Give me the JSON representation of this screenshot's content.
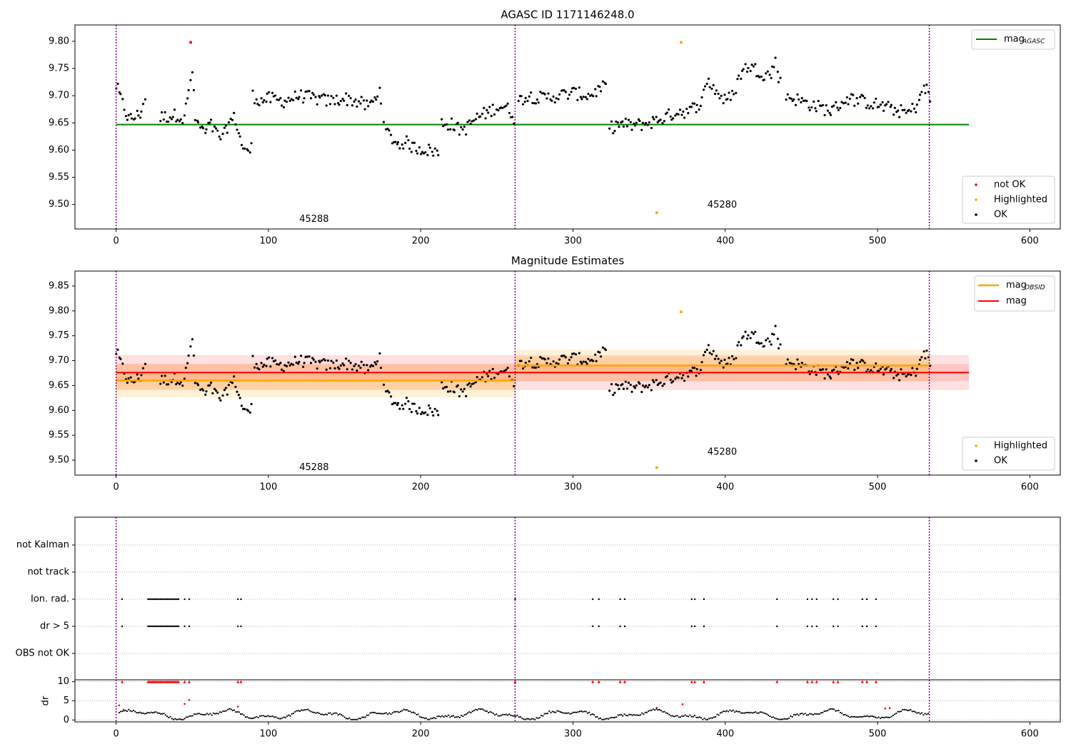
{
  "colors": {
    "ok": "#000000",
    "not_ok": "#ff0000",
    "highlighted": "#ffa500",
    "agasc_line": "#008000",
    "obsid_line": "#ffa500",
    "mag_line": "#ff0000",
    "vline": "#800080",
    "grid": "#b0b0b0"
  },
  "chart_data": [
    {
      "id": "agasc",
      "type": "scatter",
      "title": "AGASC ID 1171146248.0",
      "xlim": [
        -27,
        620
      ],
      "ylim": [
        9.455,
        9.83
      ],
      "xticks": [
        0,
        100,
        200,
        300,
        400,
        500,
        600
      ],
      "yticks": [
        9.5,
        9.55,
        9.6,
        9.65,
        9.7,
        9.75,
        9.8
      ],
      "obsid_boundaries": [
        0,
        262,
        534
      ],
      "obsid_labels": [
        {
          "text": "45288",
          "x": 130,
          "y": 9.473
        },
        {
          "text": "45280",
          "x": 398,
          "y": 9.499
        }
      ],
      "agasc_mag": 9.647,
      "agasc_mag_x_range": [
        0,
        560
      ],
      "legend_lines": [
        {
          "name": "mag",
          "sub": "AGASC"
        }
      ],
      "legend_points": [
        "not OK",
        "Highlighted",
        "OK"
      ],
      "not_ok_points": [
        [
          49,
          9.798
        ]
      ],
      "highlighted_points": [
        [
          371,
          9.798
        ],
        [
          355,
          9.485
        ]
      ],
      "ok_segments": [
        [
          [
            0,
            9.718
          ],
          [
            8,
            9.657
          ],
          [
            12,
            9.66
          ],
          [
            16,
            9.668
          ],
          [
            19,
            9.695
          ]
        ],
        [
          [
            29,
            9.66
          ],
          [
            42,
            9.665
          ],
          [
            44,
            9.655
          ],
          [
            47,
            9.692
          ],
          [
            50,
            9.748
          ],
          [
            52,
            9.655
          ],
          [
            55,
            9.645
          ],
          [
            58,
            9.63
          ],
          [
            62,
            9.648
          ],
          [
            66,
            9.63
          ],
          [
            70,
            9.622
          ],
          [
            74,
            9.65
          ],
          [
            78,
            9.66
          ],
          [
            82,
            9.615
          ],
          [
            85,
            9.6
          ],
          [
            87,
            9.59
          ],
          [
            89,
            9.615
          ]
        ],
        [
          [
            90,
            9.7
          ],
          [
            95,
            9.69
          ],
          [
            100,
            9.695
          ],
          [
            110,
            9.69
          ],
          [
            120,
            9.7
          ],
          [
            130,
            9.695
          ],
          [
            140,
            9.69
          ],
          [
            150,
            9.695
          ],
          [
            160,
            9.688
          ],
          [
            165,
            9.68
          ],
          [
            170,
            9.692
          ],
          [
            173,
            9.715
          ],
          [
            175,
            9.68
          ]
        ],
        [
          [
            176,
            9.64
          ],
          [
            180,
            9.625
          ],
          [
            185,
            9.61
          ],
          [
            190,
            9.615
          ],
          [
            195,
            9.605
          ],
          [
            200,
            9.603
          ],
          [
            205,
            9.6
          ],
          [
            210,
            9.598
          ],
          [
            212,
            9.59
          ]
        ],
        [
          [
            214,
            9.65
          ],
          [
            220,
            9.648
          ],
          [
            225,
            9.638
          ],
          [
            230,
            9.64
          ],
          [
            235,
            9.655
          ],
          [
            240,
            9.665
          ],
          [
            245,
            9.67
          ],
          [
            250,
            9.68
          ],
          [
            255,
            9.68
          ],
          [
            260,
            9.668
          ],
          [
            262,
            9.655
          ]
        ],
        [
          [
            264,
            9.69
          ],
          [
            270,
            9.7
          ],
          [
            280,
            9.695
          ],
          [
            290,
            9.7
          ],
          [
            300,
            9.705
          ],
          [
            310,
            9.7
          ],
          [
            320,
            9.715
          ],
          [
            322,
            9.718
          ]
        ],
        [
          [
            324,
            9.64
          ],
          [
            330,
            9.648
          ],
          [
            340,
            9.645
          ],
          [
            350,
            9.65
          ],
          [
            360,
            9.66
          ],
          [
            370,
            9.672
          ],
          [
            376,
            9.67
          ],
          [
            380,
            9.68
          ],
          [
            385,
            9.69
          ],
          [
            388,
            9.73
          ],
          [
            395,
            9.705
          ],
          [
            400,
            9.69
          ],
          [
            405,
            9.7
          ],
          [
            410,
            9.74
          ],
          [
            415,
            9.755
          ],
          [
            420,
            9.748
          ],
          [
            425,
            9.74
          ],
          [
            430,
            9.738
          ],
          [
            433,
            9.765
          ],
          [
            437,
            9.715
          ]
        ],
        [
          [
            440,
            9.7
          ],
          [
            450,
            9.69
          ],
          [
            460,
            9.68
          ],
          [
            470,
            9.672
          ],
          [
            480,
            9.695
          ],
          [
            490,
            9.69
          ],
          [
            500,
            9.683
          ],
          [
            510,
            9.675
          ],
          [
            520,
            9.668
          ],
          [
            525,
            9.68
          ],
          [
            530,
            9.71
          ],
          [
            533,
            9.712
          ],
          [
            535,
            9.685
          ]
        ]
      ],
      "ok_gaps": [
        [
          20,
          29
        ],
        [
          324,
          330
        ]
      ]
    },
    {
      "id": "estimates",
      "type": "scatter",
      "title": "Magnitude Estimates",
      "xlim": [
        -27,
        620
      ],
      "ylim": [
        9.47,
        9.88
      ],
      "xticks": [
        0,
        100,
        200,
        300,
        400,
        500,
        600
      ],
      "yticks": [
        9.5,
        9.55,
        9.6,
        9.65,
        9.7,
        9.75,
        9.8,
        9.85
      ],
      "obsid_boundaries": [
        0,
        262,
        534
      ],
      "obsid_labels": [
        {
          "text": "45288",
          "x": 130,
          "y": 9.485
        },
        {
          "text": "45280",
          "x": 398,
          "y": 9.516
        }
      ],
      "mag": {
        "value": 9.676,
        "band1": [
          9.659,
          9.693
        ],
        "band2": [
          9.641,
          9.711
        ],
        "x_range": [
          0,
          560
        ]
      },
      "mag_obsid": [
        {
          "x_range": [
            0,
            262
          ],
          "value": 9.66,
          "band1": [
            9.643,
            9.677
          ],
          "band2": [
            9.626,
            9.694
          ]
        },
        {
          "x_range": [
            262,
            534
          ],
          "value": 9.69,
          "band1": [
            9.673,
            9.707
          ],
          "band2": [
            9.658,
            9.722
          ]
        }
      ],
      "legend_lines": [
        {
          "name": "mag",
          "sub": "OBSID"
        },
        {
          "name": "mag",
          "sub": ""
        }
      ],
      "legend_points": [
        "Highlighted",
        "OK"
      ],
      "highlighted_points": [
        [
          371,
          9.798
        ],
        [
          355,
          9.485
        ]
      ]
    },
    {
      "id": "flags",
      "type": "scatter",
      "xlim": [
        -27,
        620
      ],
      "categories": [
        "not Kalman",
        "not track",
        "Ion. rad.",
        "dr > 5",
        "OBS not OK"
      ],
      "obsid_boundaries": [
        0,
        262,
        534
      ],
      "flag_x": [
        4,
        21,
        22,
        23,
        24,
        25,
        26,
        27,
        28,
        29,
        30,
        31,
        32,
        33,
        34,
        35,
        36,
        37,
        38,
        39,
        40,
        41,
        45,
        48,
        80,
        82,
        262,
        313,
        317,
        331,
        334,
        378,
        380,
        386,
        434,
        454,
        457,
        460,
        471,
        474,
        490,
        493,
        499
      ]
    },
    {
      "id": "dr",
      "type": "scatter",
      "ylabel": "dr",
      "xlim": [
        -27,
        620
      ],
      "ylim": [
        -0.5,
        10.5
      ],
      "yticks": [
        0,
        5,
        10
      ],
      "xticks": [
        0,
        100,
        200,
        300,
        400,
        500,
        600
      ],
      "obsid_boundaries": [
        0,
        262,
        534
      ],
      "red_clip_value": 10
    }
  ]
}
